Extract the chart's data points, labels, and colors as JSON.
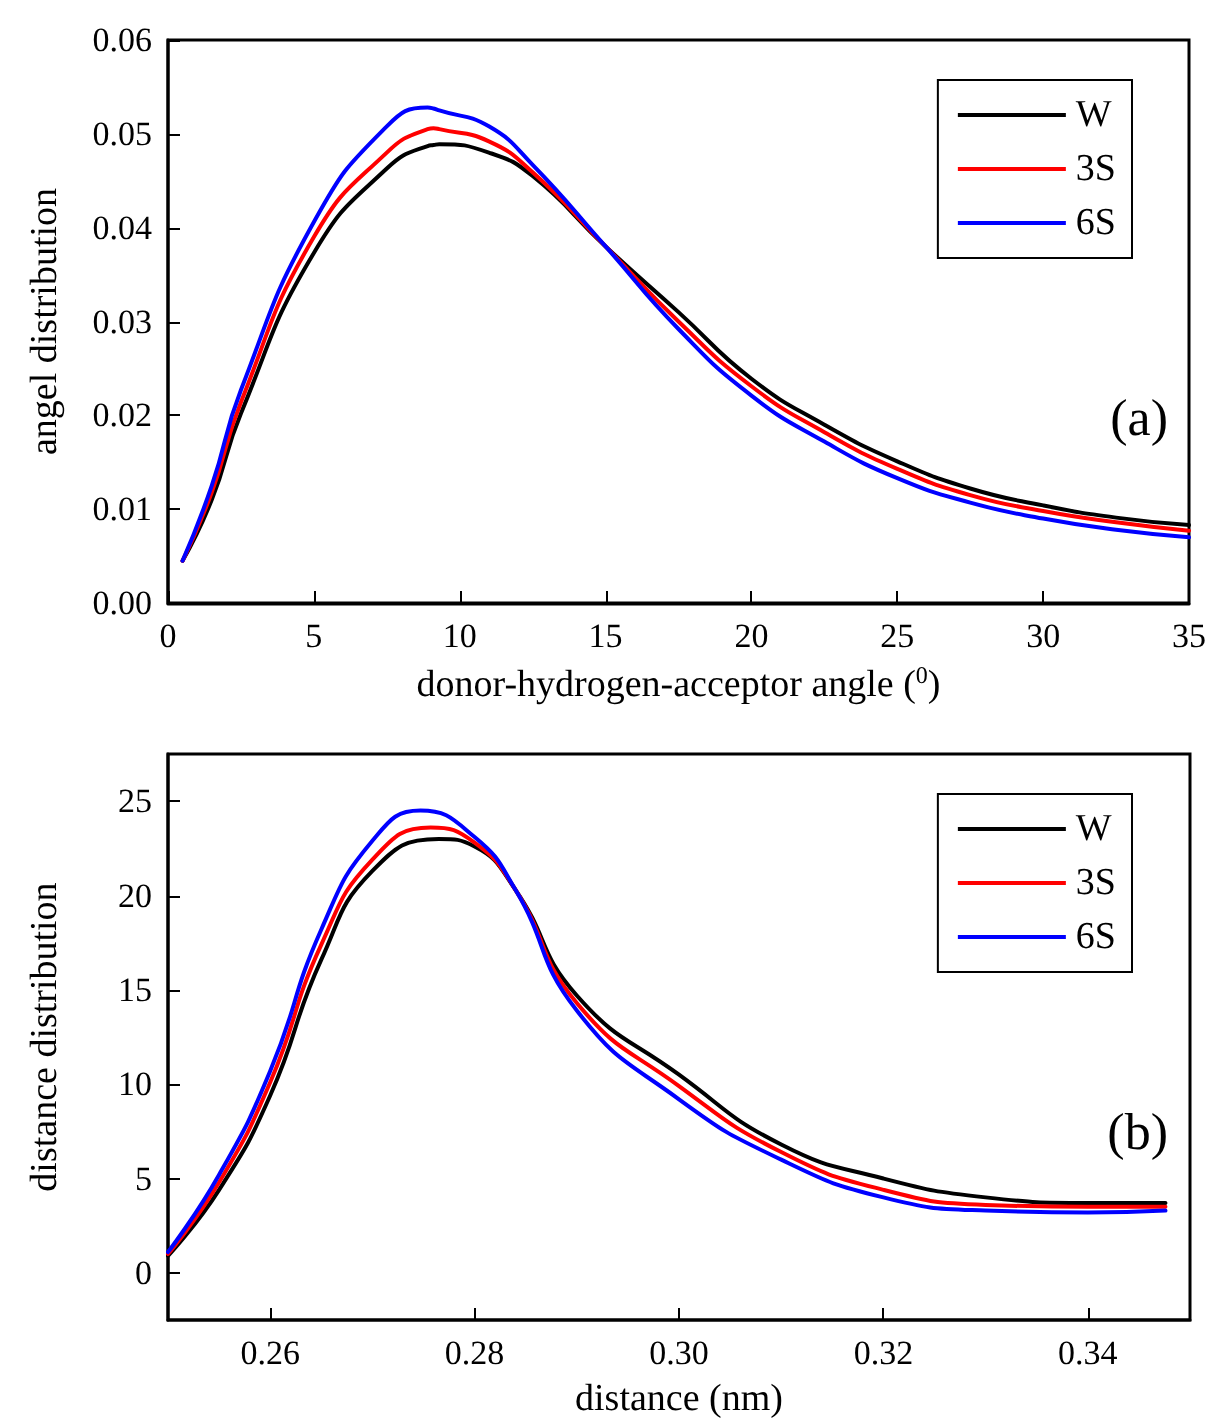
{
  "chart_data": [
    {
      "type": "line",
      "xlabel": "donor-hydrogen-acceptor angle ($^{0}$)",
      "ylabel": "angel distribution",
      "annotations": [
        "(a)"
      ],
      "xlim": [
        0,
        35
      ],
      "xticks": [
        0,
        5,
        10,
        15,
        20,
        25,
        30,
        35
      ],
      "ylim": [
        0,
        0.06
      ],
      "yticks": [
        {
          "value": 0,
          "label": "0.00"
        },
        {
          "value": 0.01,
          "label": "0.01"
        },
        {
          "value": 0.02,
          "label": "0.02"
        },
        {
          "value": 0.03,
          "label": "0.03"
        },
        {
          "value": 0.04,
          "label": "0.04"
        },
        {
          "value": 0.05,
          "label": "0.05"
        },
        {
          "value": 0.06,
          "label": "0.06"
        }
      ],
      "grid": false,
      "legend": "top right",
      "marker": "none",
      "line_style": "solid",
      "x": [
        0.5,
        1.5,
        2.5,
        5,
        7.5,
        8.9,
        9.1,
        9.3,
        11,
        12.5,
        15,
        17.5,
        20,
        22.5,
        25,
        27.5,
        30,
        32.5,
        35
      ],
      "series": [
        {
          "name": "W",
          "color": "#000000",
          "values": [
            0.0045,
            0.011,
            0.0202,
            0.0373,
            0.0463,
            0.0487,
            0.0488,
            0.0489,
            0.048,
            0.0455,
            0.038,
            0.031,
            0.0239,
            0.019,
            0.0151,
            0.0122,
            0.0104,
            0.0091,
            0.0083
          ]
        },
        {
          "name": "3S",
          "color": "#ff0000",
          "values": [
            0.0045,
            0.0118,
            0.0214,
            0.039,
            0.048,
            0.0505,
            0.0506,
            0.0505,
            0.0492,
            0.0459,
            0.038,
            0.03,
            0.0231,
            0.0182,
            0.0143,
            0.0115,
            0.0098,
            0.0086,
            0.0077
          ]
        },
        {
          "name": "6S",
          "color": "#0000ff",
          "values": [
            0.0045,
            0.0125,
            0.0227,
            0.0406,
            0.0508,
            0.0528,
            0.0527,
            0.0525,
            0.0508,
            0.0467,
            0.038,
            0.0292,
            0.0221,
            0.0172,
            0.0133,
            0.0107,
            0.009,
            0.0078,
            0.007
          ]
        }
      ]
    },
    {
      "type": "line",
      "xlabel": "distance (nm)",
      "ylabel": "distance distribution",
      "annotations": [
        "(b)"
      ],
      "xlim": [
        0.25,
        0.35
      ],
      "xticks": [
        0.26,
        0.28,
        {
          "value": 0.3,
          "label": "0.30"
        },
        0.32,
        0.34
      ],
      "ylim": [
        -2.5,
        27.5
      ],
      "yticks": [
        0,
        5,
        10,
        15,
        20,
        25
      ],
      "grid": false,
      "legend": "top right",
      "marker": "none",
      "line_style": "solid",
      "series": [
        {
          "name": "W",
          "color": "#000000",
          "x": [
            0.25,
            0.255,
            0.26,
            0.265,
            0.27,
            0.2765,
            0.28,
            0.284,
            0.29,
            0.3,
            0.31,
            0.32,
            0.33,
            0.34,
            0.3476
          ],
          "values": [
            0.9,
            4.4,
            9.4,
            16.6,
            21.3,
            23.0,
            22.6,
            20.3,
            14.7,
            10.5,
            6.8,
            5.0,
            4.0,
            3.7,
            3.7
          ]
        },
        {
          "name": "3S",
          "color": "#ff0000",
          "x": [
            0.25,
            0.255,
            0.26,
            0.265,
            0.27,
            0.2757,
            0.28,
            0.284,
            0.29,
            0.3,
            0.31,
            0.32,
            0.33,
            0.34,
            0.3476
          ],
          "values": [
            1.0,
            4.8,
            10.1,
            17.4,
            21.9,
            23.6,
            22.8,
            20.3,
            14.3,
            9.9,
            6.4,
            4.4,
            3.6,
            3.5,
            3.5
          ]
        },
        {
          "name": "6S",
          "color": "#0000ff",
          "x": [
            0.25,
            0.255,
            0.26,
            0.265,
            0.27,
            0.2747,
            0.28,
            0.284,
            0.29,
            0.3,
            0.31,
            0.32,
            0.33,
            0.34,
            0.3476
          ],
          "values": [
            1.1,
            5.2,
            10.7,
            18.2,
            22.9,
            24.5,
            23.1,
            20.3,
            13.9,
            9.2,
            6.0,
            4.0,
            3.3,
            3.2,
            3.3
          ]
        }
      ]
    }
  ]
}
